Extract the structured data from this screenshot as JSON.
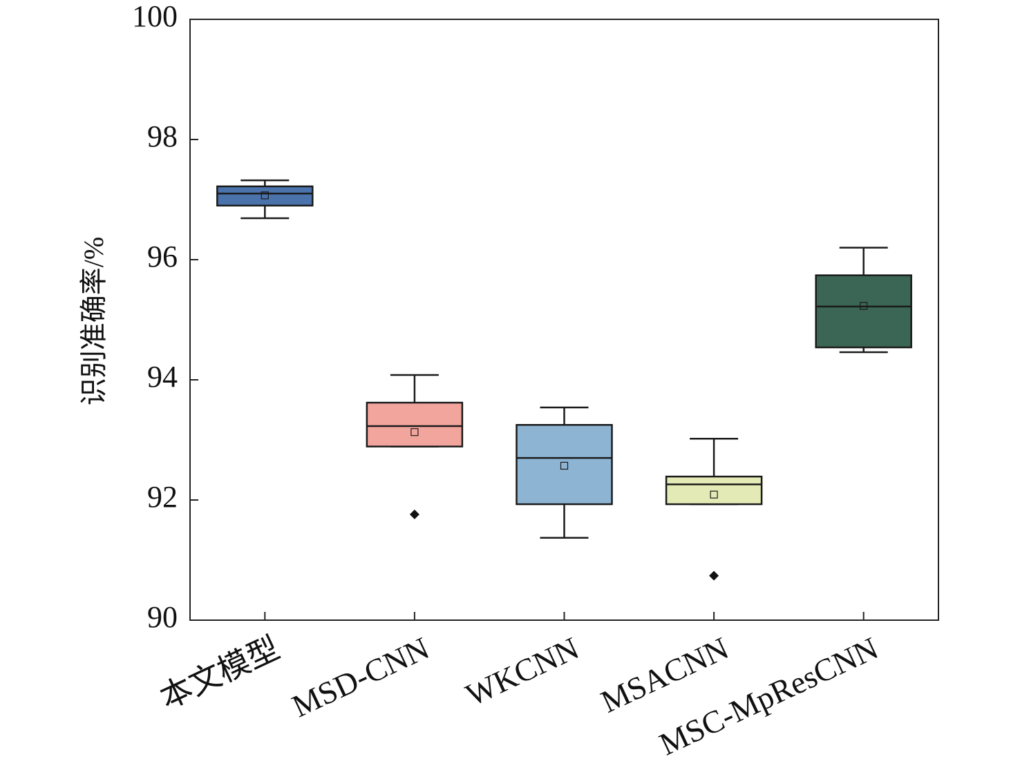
{
  "chart_data": {
    "type": "box",
    "ylabel": "识别准确率/%",
    "categories": [
      "本文模型",
      "MSD-CNN",
      "WKCNN",
      "MSACNN",
      "MSC-MpResCNN"
    ],
    "boxes": [
      {
        "min": 96.69,
        "q1": 96.9,
        "median": 97.1,
        "q3": 97.22,
        "max": 97.32,
        "mean": 97.07,
        "outliers": [],
        "color": "#4a72ab"
      },
      {
        "min": 92.89,
        "q1": 92.89,
        "median": 93.23,
        "q3": 93.62,
        "max": 94.08,
        "mean": 93.13,
        "outliers": [
          91.76
        ],
        "color": "#f2a59c"
      },
      {
        "min": 91.37,
        "q1": 91.93,
        "median": 92.7,
        "q3": 93.25,
        "max": 93.54,
        "mean": 92.57,
        "outliers": [],
        "color": "#8db4d3"
      },
      {
        "min": 91.93,
        "q1": 91.93,
        "median": 92.26,
        "q3": 92.39,
        "max": 93.02,
        "mean": 92.09,
        "outliers": [
          90.74
        ],
        "color": "#e4eab6"
      },
      {
        "min": 94.46,
        "q1": 94.54,
        "median": 95.22,
        "q3": 95.74,
        "max": 96.2,
        "mean": 95.23,
        "outliers": [],
        "color": "#3b6656"
      }
    ],
    "ylim": [
      90,
      100
    ],
    "yticks": [
      90,
      92,
      94,
      96,
      98,
      100
    ]
  }
}
